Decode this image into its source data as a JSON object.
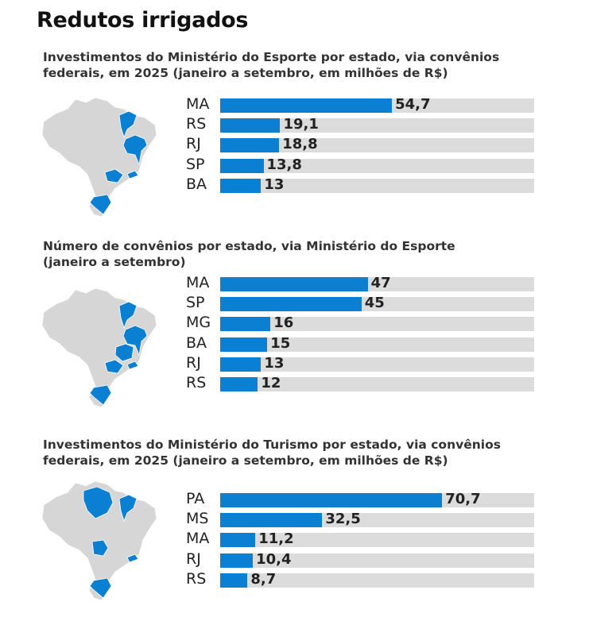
{
  "title": "Redutos irrigados",
  "colors": {
    "bar": "#0b7fd1",
    "track": "#dcdcdc",
    "map": "#d6d6d6"
  },
  "chart_data": [
    {
      "type": "bar",
      "title": "Investimentos do Ministério do Esporte por estado, via convênios federais, em 2025 (janeiro a setembro, em milhões de R$)",
      "title_lines": [
        "Investimentos do Ministério do Esporte por estado, via convênios",
        "federais, em 2025 (janeiro a setembro, em milhões de R$)"
      ],
      "categories": [
        "MA",
        "RS",
        "RJ",
        "SP",
        "BA"
      ],
      "values": [
        54.7,
        19.1,
        18.8,
        13.8,
        13
      ],
      "labels": [
        "54,7",
        "19,1",
        "18,8",
        "13,8",
        "13"
      ],
      "xlim": [
        0,
        100
      ]
    },
    {
      "type": "bar",
      "title": "Número de convênios por estado, via Ministério do Esporte (janeiro a setembro)",
      "title_lines": [
        "Número de convênios por estado, via Ministério do Esporte",
        "(janeiro a setembro)"
      ],
      "categories": [
        "MA",
        "SP",
        "MG",
        "BA",
        "RJ",
        "RS"
      ],
      "values": [
        47,
        45,
        16,
        15,
        13,
        12
      ],
      "labels": [
        "47",
        "45",
        "16",
        "15",
        "13",
        "12"
      ],
      "xlim": [
        0,
        100
      ]
    },
    {
      "type": "bar",
      "title": "Investimentos do Ministério do Turismo por estado, via convênios federais, em 2025 (janeiro a setembro, em milhões de R$)",
      "title_lines": [
        "Investimentos do Ministério do Turismo por estado, via convênios",
        "federais, em 2025 (janeiro a setembro, em milhões de R$)"
      ],
      "categories": [
        "PA",
        "MS",
        "MA",
        "RJ",
        "RS"
      ],
      "values": [
        70.7,
        32.5,
        11.2,
        10.4,
        8.7
      ],
      "labels": [
        "70,7",
        "32,5",
        "11,2",
        "10,4",
        "8,7"
      ],
      "xlim": [
        0,
        100
      ]
    }
  ]
}
